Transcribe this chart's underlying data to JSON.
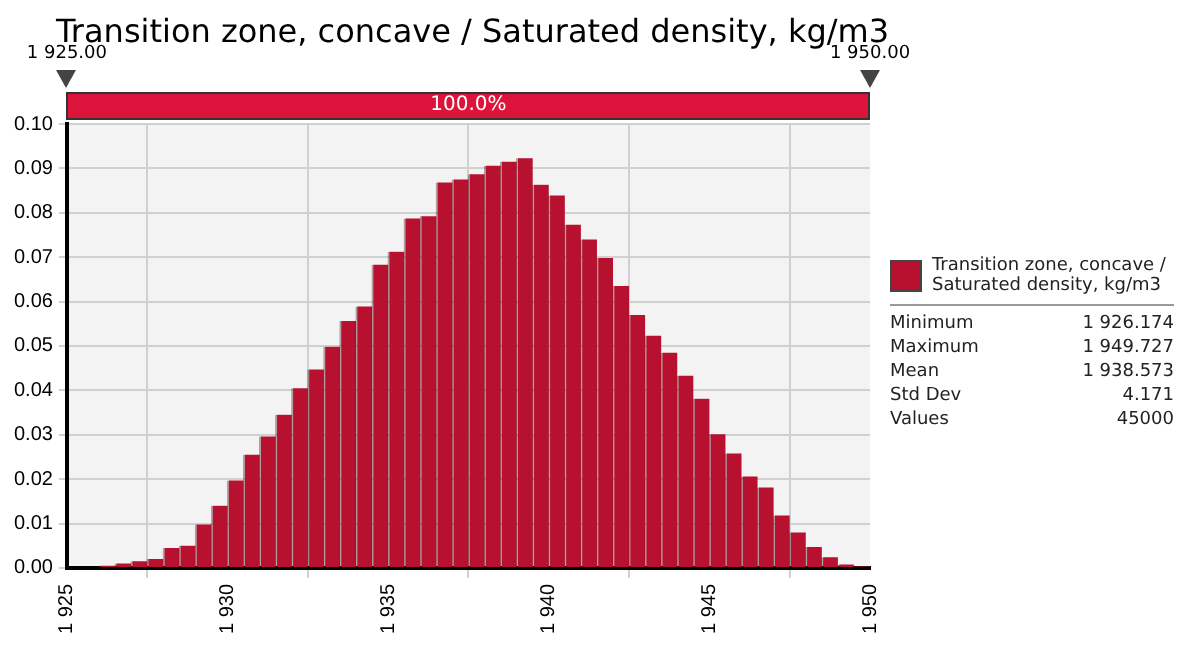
{
  "chart_data": {
    "type": "histogram",
    "title": "Transition zone, concave / Saturated density, kg/m3",
    "bins": [
      1925,
      1925.5,
      1926,
      1926.5,
      1927,
      1927.5,
      1928,
      1928.5,
      1929,
      1929.5,
      1930,
      1930.5,
      1931,
      1931.5,
      1932,
      1932.5,
      1933,
      1933.5,
      1934,
      1934.5,
      1935,
      1935.5,
      1936,
      1936.5,
      1937,
      1937.5,
      1938,
      1938.5,
      1939,
      1939.5,
      1940,
      1940.5,
      1941,
      1941.5,
      1942,
      1942.5,
      1943,
      1943.5,
      1944,
      1944.5,
      1945,
      1945.5,
      1946,
      1946.5,
      1947,
      1947.5,
      1948,
      1948.5,
      1949,
      1949.5,
      1950
    ],
    "series": [
      {
        "name": "Transition zone, concave / Saturated density, kg/m3",
        "color": "#b8102f",
        "values": [
          0,
          0,
          0.0005,
          0.001,
          0.0015,
          0.002,
          0.0045,
          0.005,
          0.0098,
          0.014,
          0.0197,
          0.0255,
          0.0296,
          0.0345,
          0.0405,
          0.0447,
          0.0498,
          0.0556,
          0.0589,
          0.0683,
          0.0712,
          0.0787,
          0.0792,
          0.0868,
          0.0875,
          0.0887,
          0.0906,
          0.0915,
          0.0923,
          0.0863,
          0.0839,
          0.0773,
          0.074,
          0.0698,
          0.0635,
          0.057,
          0.0523,
          0.0485,
          0.0433,
          0.0381,
          0.0301,
          0.0258,
          0.0206,
          0.0181,
          0.0118,
          0.008,
          0.0047,
          0.0024,
          0.0008,
          0.0003
        ]
      }
    ],
    "xlim": [
      1925,
      1950
    ],
    "xticks": [
      {
        "value": 1925,
        "label": "1 925"
      },
      {
        "value": 1930,
        "label": "1 930"
      },
      {
        "value": 1935,
        "label": "1 935"
      },
      {
        "value": 1940,
        "label": "1 940"
      },
      {
        "value": 1945,
        "label": "1 945"
      },
      {
        "value": 1950,
        "label": "1 950"
      }
    ],
    "ylim": [
      0,
      0.1
    ],
    "yticks": [
      {
        "value": 0,
        "label": "0.00"
      },
      {
        "value": 0.01,
        "label": "0.01"
      },
      {
        "value": 0.02,
        "label": "0.02"
      },
      {
        "value": 0.03,
        "label": "0.03"
      },
      {
        "value": 0.04,
        "label": "0.04"
      },
      {
        "value": 0.05,
        "label": "0.05"
      },
      {
        "value": 0.06,
        "label": "0.06"
      },
      {
        "value": 0.07,
        "label": "0.07"
      },
      {
        "value": 0.08,
        "label": "0.08"
      },
      {
        "value": 0.09,
        "label": "0.09"
      },
      {
        "value": 0.1,
        "label": "0.10"
      }
    ],
    "grid": true,
    "legend": "right",
    "annotations": [
      "1 925.00",
      "1 950.00",
      "100.0%",
      "Minimum\t1 926.174",
      "Maximum\t1 949.727",
      "Mean\t1 938.573",
      "Std Dev\t4.171",
      "Values\t45000"
    ]
  }
}
